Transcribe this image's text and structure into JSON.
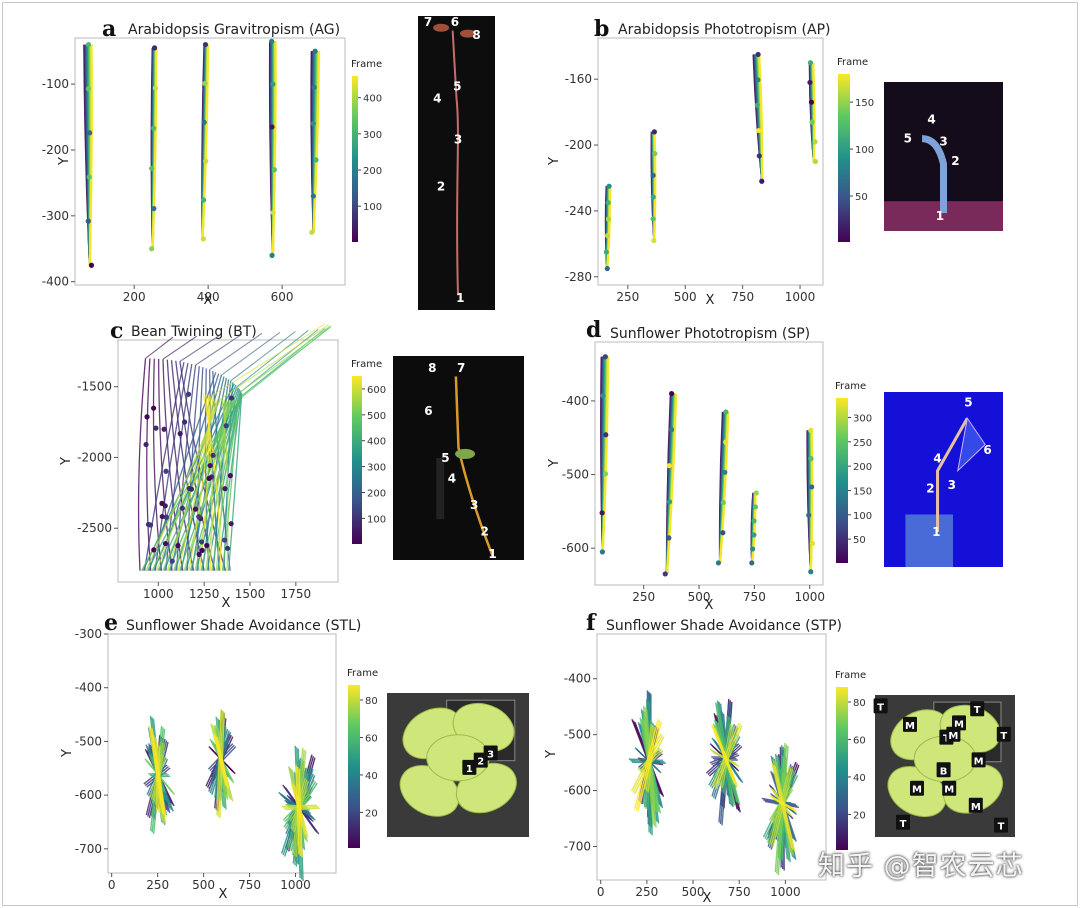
{
  "watermark": "知乎 @智农云芯",
  "colormap": [
    "#440154",
    "#3b528b",
    "#21918c",
    "#5ec962",
    "#fde725"
  ],
  "photo_backgrounds": {
    "AG": "#0d0d0d",
    "AP": "#140c1a",
    "BT": "#0c0c0c",
    "SP": "#1410d8",
    "STL": "#3a3a3a",
    "STP": "#3a3a3a"
  },
  "chart_data": [
    {
      "panel_letter": "a",
      "type": "line",
      "title": "Arabidopsis Gravitropism (AG)",
      "xlabel": "X",
      "ylabel": "Y",
      "xlim": [
        40,
        770
      ],
      "ylim": [
        -405,
        -30
      ],
      "xticks": [
        200,
        400,
        600
      ],
      "yticks": [
        -100,
        -200,
        -300,
        -400
      ],
      "colorbar": {
        "label": "Frame",
        "range": [
          1,
          460
        ],
        "ticks": [
          100,
          200,
          300,
          400
        ]
      },
      "stems": [
        {
          "x_base": 80,
          "y_base": -375,
          "x_top": 75,
          "y_top": -40,
          "lean": 20
        },
        {
          "x_base": 250,
          "y_base": -350,
          "x_top": 255,
          "y_top": -45,
          "lean": 10
        },
        {
          "x_base": 385,
          "y_base": -335,
          "x_top": 395,
          "y_top": -40,
          "lean": 10
        },
        {
          "x_base": 575,
          "y_base": -360,
          "x_top": 575,
          "y_top": -35,
          "lean": 15
        },
        {
          "x_base": 685,
          "y_base": -325,
          "x_top": 690,
          "y_top": -50,
          "lean": 20
        }
      ],
      "photo_labels": [
        "7",
        "6",
        "8",
        "5",
        "4",
        "3",
        "2",
        "1"
      ]
    },
    {
      "panel_letter": "b",
      "type": "line",
      "title": "Arabidopsis Phototropism (AP)",
      "xlabel": "X",
      "ylabel": "Y",
      "xlim": [
        120,
        1100
      ],
      "ylim": [
        -285,
        -135
      ],
      "xticks": [
        250,
        500,
        750,
        1000
      ],
      "yticks": [
        -160,
        -200,
        -240,
        -280
      ],
      "colorbar": {
        "label": "Frame",
        "range": [
          1,
          180
        ],
        "ticks": [
          50,
          100,
          150
        ]
      },
      "stems": [
        {
          "x_base": 160,
          "y_base": -275,
          "x_top": 165,
          "y_top": -225,
          "lean": 15
        },
        {
          "x_base": 365,
          "y_base": -258,
          "x_top": 360,
          "y_top": -192,
          "lean": 12
        },
        {
          "x_base": 835,
          "y_base": -222,
          "x_top": 810,
          "y_top": -145,
          "lean": 25
        },
        {
          "x_base": 1060,
          "y_base": -210,
          "x_top": 1050,
          "y_top": -150,
          "lean": 15
        }
      ],
      "photo_labels": [
        "4",
        "5",
        "3",
        "2",
        "1"
      ]
    },
    {
      "panel_letter": "c",
      "type": "line",
      "title": "Bean Twining  (BT)",
      "xlabel": "X",
      "ylabel": "Y",
      "xlim": [
        780,
        1980
      ],
      "ylim": [
        -2880,
        -1170
      ],
      "xticks": [
        1000,
        1250,
        1500,
        1750
      ],
      "yticks": [
        -1500,
        -2000,
        -2500
      ],
      "colorbar": {
        "label": "Frame",
        "range": [
          1,
          650
        ],
        "ticks": [
          100,
          200,
          300,
          400,
          500,
          600
        ]
      },
      "sweep": {
        "base_x_from": 900,
        "base_x_to": 1400,
        "base_y": -2800,
        "top_y": -1450,
        "tip_lean": 500
      },
      "photo_labels": [
        "8",
        "7",
        "6",
        "5",
        "4",
        "3",
        "2",
        "1"
      ]
    },
    {
      "panel_letter": "d",
      "type": "line",
      "title": "Sunflower Phototropism  (SP)",
      "xlabel": "X",
      "ylabel": "Y",
      "xlim": [
        30,
        1060
      ],
      "ylim": [
        -650,
        -320
      ],
      "xticks": [
        250,
        500,
        750,
        1000
      ],
      "yticks": [
        -400,
        -500,
        -600
      ],
      "colorbar": {
        "label": "Frame",
        "range": [
          1,
          340
        ],
        "ticks": [
          50,
          100,
          150,
          200,
          250,
          300
        ]
      },
      "stems": [
        {
          "x_base": 65,
          "y_base": -605,
          "x_top": 75,
          "y_top": -340,
          "lean": 30
        },
        {
          "x_base": 355,
          "y_base": -635,
          "x_top": 385,
          "y_top": -390,
          "lean": 25
        },
        {
          "x_base": 595,
          "y_base": -620,
          "x_top": 620,
          "y_top": -415,
          "lean": 25
        },
        {
          "x_base": 740,
          "y_base": -620,
          "x_top": 750,
          "y_top": -525,
          "lean": 10
        },
        {
          "x_base": 1005,
          "y_base": -632,
          "x_top": 1000,
          "y_top": -440,
          "lean": 20
        }
      ],
      "photo_labels": [
        "5",
        "6",
        "4",
        "3",
        "2",
        "1"
      ]
    },
    {
      "panel_letter": "e",
      "type": "line",
      "title": "Sunflower Shade Avoidance (STL)",
      "xlabel": "X",
      "ylabel": "Y",
      "xlim": [
        -20,
        1220
      ],
      "ylim": [
        -745,
        -300
      ],
      "xticks": [
        0,
        250,
        500,
        750,
        1000
      ],
      "yticks": [
        -300,
        -400,
        -500,
        -600,
        -700
      ],
      "colorbar": {
        "label": "Frame",
        "range": [
          1,
          88
        ],
        "ticks": [
          20,
          40,
          60,
          80
        ]
      },
      "fans": [
        {
          "cx": 245,
          "cy": -560,
          "spread": 200,
          "n": 24
        },
        {
          "cx": 585,
          "cy": -530,
          "spread": 190,
          "n": 18
        },
        {
          "cx": 1010,
          "cy": -620,
          "spread": 230,
          "n": 30
        }
      ],
      "photo_labels": [
        "1",
        "2",
        "3"
      ]
    },
    {
      "panel_letter": "f",
      "type": "line",
      "title": "Sunflower Shade Avoidance (STP)",
      "xlabel": "X",
      "ylabel": "Y",
      "xlim": [
        -20,
        1220
      ],
      "ylim": [
        -760,
        -320
      ],
      "xticks": [
        0,
        250,
        500,
        750,
        1000
      ],
      "yticks": [
        -400,
        -500,
        -600,
        -700
      ],
      "colorbar": {
        "label": "Frame",
        "range": [
          1,
          88
        ],
        "ticks": [
          20,
          40,
          60,
          80
        ]
      },
      "fans": [
        {
          "cx": 255,
          "cy": -545,
          "spread": 220,
          "n": 24
        },
        {
          "cx": 670,
          "cy": -540,
          "spread": 230,
          "n": 22
        },
        {
          "cx": 975,
          "cy": -620,
          "spread": 220,
          "n": 30
        }
      ],
      "photo_labels": [
        "T",
        "M",
        "M",
        "T",
        "T",
        "T",
        "M",
        "M",
        "B",
        "M",
        "M",
        "M",
        "T",
        "T"
      ]
    }
  ]
}
